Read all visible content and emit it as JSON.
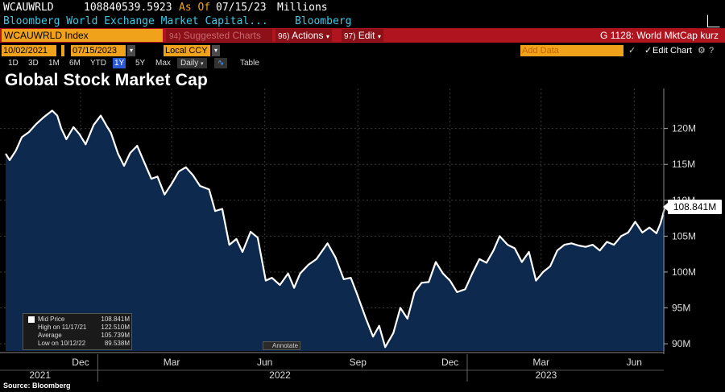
{
  "header": {
    "ticker": "WCAUWRLD",
    "last_value": "108840539.5923",
    "as_of_label": "As Of",
    "as_of_date": "07/15/23",
    "units": "Millions",
    "description": "Bloomberg World Exchange Market Capital...",
    "source_name": "Bloomberg"
  },
  "command_bar": {
    "security": "WCAUWRLD Index",
    "suggested": "Suggested Charts",
    "suggested_num": "94)",
    "actions_num": "96)",
    "actions": "Actions",
    "edit_num": "97)",
    "edit": "Edit",
    "graph_title": "G 1128: World MktCap kurz"
  },
  "range": {
    "start": "10/02/2021",
    "end": "07/15/2023",
    "currency": "Local CCY",
    "add_data": "Add Data",
    "edit_chart": "Edit Chart"
  },
  "periods": [
    "1D",
    "3D",
    "1M",
    "6M",
    "YTD",
    "1Y",
    "5Y",
    "Max"
  ],
  "active_period": "1Y",
  "frequency": "Daily",
  "table_label": "Table",
  "title": "Global Stock Market Cap",
  "legend": {
    "mid_price_label": "Mid Price",
    "mid_price_value": "108.841M",
    "high_label": "High on 11/17/21",
    "high_value": "122.510M",
    "average_label": "Average",
    "average_value": "105.739M",
    "low_label": "Low on 10/12/22",
    "low_value": "89.538M"
  },
  "annotate_label": "Annotate",
  "last_tag": "108.841M",
  "source": "Source: Bloomberg",
  "colors": {
    "background": "#000000",
    "area_fill": "#0d2a4e",
    "line": "#ffffff",
    "command_bar": "#b0141e",
    "field": "#f0a31a",
    "header_cyan": "#3ec8e6",
    "as_of": "#f0a31a"
  },
  "chart_data": {
    "type": "area",
    "title": "Global Stock Market Cap",
    "y_unit": "M",
    "ylim": [
      89,
      124
    ],
    "y_ticks": [
      90,
      95,
      100,
      105,
      110,
      115,
      120
    ],
    "y_tick_labels": [
      "90M",
      "95M",
      "100M",
      "105M",
      "110M",
      "115M",
      "120M"
    ],
    "x_month_labels": [
      "Dec",
      "Mar",
      "Jun",
      "Sep",
      "Dec",
      "Mar",
      "Jun"
    ],
    "x_month_dates": [
      "2021-12-15",
      "2022-03-15",
      "2022-06-15",
      "2022-09-15",
      "2022-12-15",
      "2023-03-15",
      "2023-06-15"
    ],
    "x_year_labels": [
      "2021",
      "2022",
      "2023"
    ],
    "x_year_dates": [
      "2021-11-05",
      "2022-06-30",
      "2023-03-20"
    ],
    "xlim": [
      "2021-10-02",
      "2023-07-15"
    ],
    "grid": true,
    "series": [
      {
        "values": [
          [
            "2021-10-02",
            116.5
          ],
          [
            "2021-10-06",
            115.6
          ],
          [
            "2021-10-12",
            116.9
          ],
          [
            "2021-10-18",
            118.8
          ],
          [
            "2021-10-25",
            119.5
          ],
          [
            "2021-11-01",
            120.6
          ],
          [
            "2021-11-08",
            121.5
          ],
          [
            "2021-11-17",
            122.5
          ],
          [
            "2021-11-22",
            121.8
          ],
          [
            "2021-11-26",
            120.0
          ],
          [
            "2021-12-01",
            118.5
          ],
          [
            "2021-12-08",
            120.2
          ],
          [
            "2021-12-14",
            119.2
          ],
          [
            "2021-12-20",
            117.8
          ],
          [
            "2021-12-28",
            120.5
          ],
          [
            "2022-01-04",
            121.8
          ],
          [
            "2022-01-10",
            120.3
          ],
          [
            "2022-01-14",
            119.4
          ],
          [
            "2022-01-21",
            116.5
          ],
          [
            "2022-01-27",
            114.8
          ],
          [
            "2022-02-02",
            116.6
          ],
          [
            "2022-02-09",
            117.6
          ],
          [
            "2022-02-15",
            115.6
          ],
          [
            "2022-02-23",
            113.0
          ],
          [
            "2022-03-01",
            113.3
          ],
          [
            "2022-03-08",
            110.8
          ],
          [
            "2022-03-15",
            112.3
          ],
          [
            "2022-03-22",
            114.0
          ],
          [
            "2022-03-29",
            114.6
          ],
          [
            "2022-04-05",
            113.5
          ],
          [
            "2022-04-12",
            112.0
          ],
          [
            "2022-04-21",
            111.5
          ],
          [
            "2022-04-27",
            108.5
          ],
          [
            "2022-05-04",
            108.8
          ],
          [
            "2022-05-11",
            103.8
          ],
          [
            "2022-05-18",
            104.6
          ],
          [
            "2022-05-24",
            102.8
          ],
          [
            "2022-06-01",
            105.6
          ],
          [
            "2022-06-08",
            104.8
          ],
          [
            "2022-06-16",
            98.8
          ],
          [
            "2022-06-22",
            99.2
          ],
          [
            "2022-06-30",
            98.2
          ],
          [
            "2022-07-08",
            99.8
          ],
          [
            "2022-07-14",
            97.8
          ],
          [
            "2022-07-20",
            99.8
          ],
          [
            "2022-07-28",
            101.0
          ],
          [
            "2022-08-05",
            101.8
          ],
          [
            "2022-08-16",
            104.0
          ],
          [
            "2022-08-24",
            102.0
          ],
          [
            "2022-09-01",
            99.0
          ],
          [
            "2022-09-08",
            99.2
          ],
          [
            "2022-09-14",
            97.0
          ],
          [
            "2022-09-23",
            93.5
          ],
          [
            "2022-09-30",
            91.0
          ],
          [
            "2022-10-06",
            92.5
          ],
          [
            "2022-10-12",
            89.54
          ],
          [
            "2022-10-20",
            91.5
          ],
          [
            "2022-10-27",
            95.0
          ],
          [
            "2022-11-03",
            93.5
          ],
          [
            "2022-11-10",
            97.2
          ],
          [
            "2022-11-17",
            98.5
          ],
          [
            "2022-11-24",
            98.6
          ],
          [
            "2022-12-01",
            101.4
          ],
          [
            "2022-12-08",
            99.8
          ],
          [
            "2022-12-15",
            98.8
          ],
          [
            "2022-12-22",
            97.2
          ],
          [
            "2022-12-30",
            97.6
          ],
          [
            "2023-01-06",
            99.8
          ],
          [
            "2023-01-13",
            101.8
          ],
          [
            "2023-01-20",
            101.3
          ],
          [
            "2023-01-27",
            103.0
          ],
          [
            "2023-02-02",
            105.0
          ],
          [
            "2023-02-10",
            103.8
          ],
          [
            "2023-02-17",
            103.3
          ],
          [
            "2023-02-24",
            101.4
          ],
          [
            "2023-03-03",
            102.8
          ],
          [
            "2023-03-10",
            98.8
          ],
          [
            "2023-03-17",
            100.0
          ],
          [
            "2023-03-24",
            100.8
          ],
          [
            "2023-03-31",
            103.0
          ],
          [
            "2023-04-07",
            103.8
          ],
          [
            "2023-04-14",
            104.0
          ],
          [
            "2023-04-21",
            103.7
          ],
          [
            "2023-04-28",
            103.5
          ],
          [
            "2023-05-05",
            103.8
          ],
          [
            "2023-05-12",
            103.0
          ],
          [
            "2023-05-19",
            104.2
          ],
          [
            "2023-05-26",
            103.8
          ],
          [
            "2023-06-02",
            105.0
          ],
          [
            "2023-06-09",
            105.5
          ],
          [
            "2023-06-16",
            107.0
          ],
          [
            "2023-06-23",
            105.5
          ],
          [
            "2023-06-30",
            106.2
          ],
          [
            "2023-07-07",
            105.4
          ],
          [
            "2023-07-11",
            106.8
          ],
          [
            "2023-07-15",
            108.84
          ]
        ]
      }
    ]
  }
}
